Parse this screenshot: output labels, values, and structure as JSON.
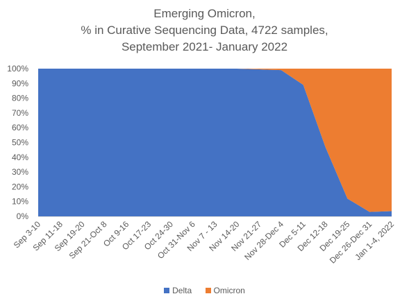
{
  "chart_data": {
    "type": "area",
    "stacked": true,
    "title_lines": [
      "Emerging Omicron,",
      "% in Curative Sequencing Data, 4722 samples,",
      "September 2021- January 2022"
    ],
    "categories": [
      "Sep 3-10",
      "Sep 11-18",
      "Sep 19-20",
      "Sep 21-Oct 8",
      "Oct 9-16",
      "Oct 17-23",
      "Oct 24-30",
      "Oct 31-Nov 6",
      "Nov 7 - 13",
      "Nov 14-20",
      "Nov 21-27",
      "Nov 28-Dec 4",
      "Dec 5-11",
      "Dec 12-18",
      "Dec 19-25",
      "Dec 26-Dec 31",
      "Jan 1-4, 2022"
    ],
    "series": [
      {
        "name": "Delta",
        "color": "#4472C4",
        "values": [
          100,
          100,
          100,
          100,
          100,
          100,
          100,
          100,
          100,
          100,
          99.5,
          99,
          89,
          47,
          12,
          3,
          3.5
        ]
      },
      {
        "name": "Omicron",
        "color": "#ED7D31",
        "values": [
          0,
          0,
          0,
          0,
          0,
          0,
          0,
          0,
          0,
          0,
          0.5,
          1,
          11,
          53,
          88,
          97,
          96.5
        ]
      }
    ],
    "y_ticks": [
      "0%",
      "10%",
      "20%",
      "30%",
      "40%",
      "50%",
      "60%",
      "70%",
      "80%",
      "90%",
      "100%"
    ],
    "ylim": [
      0,
      100
    ],
    "grid": false,
    "legend_position": "bottom"
  }
}
